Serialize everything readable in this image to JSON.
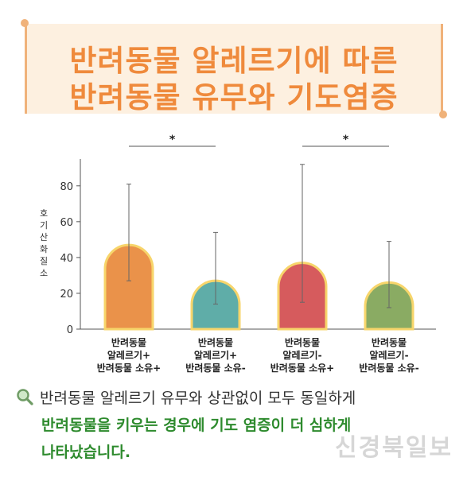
{
  "title": {
    "line1": "반려동물 알레르기에 따른",
    "line2": "반려동물 유무와 기도염증"
  },
  "colors": {
    "title": "#ef8a3c",
    "highlight": "#2e8b2e",
    "bar_outline": "#f7d56b"
  },
  "chart_data": {
    "type": "bar",
    "ylabel": "호기산화질소",
    "ylim": [
      0,
      95
    ],
    "yticks": [
      0,
      20,
      40,
      60,
      80
    ],
    "categories": [
      [
        "반려동물",
        "알레르기+",
        "반려동물 소유+"
      ],
      [
        "반려동물",
        "알레르기+",
        "반려동물 소유-"
      ],
      [
        "반려동물",
        "알레르기-",
        "반려동물 소유+"
      ],
      [
        "반려동물",
        "알레르기-",
        "반려동물 소유-"
      ]
    ],
    "values": [
      47,
      27,
      37,
      26
    ],
    "error_low": [
      27,
      14,
      15,
      12
    ],
    "error_high": [
      81,
      54,
      92,
      49
    ],
    "bar_colors": [
      "#ea924a",
      "#5fada8",
      "#d65b5d",
      "#8aab63"
    ],
    "significance": [
      {
        "from": 0,
        "to": 1,
        "label": "*"
      },
      {
        "from": 2,
        "to": 3,
        "label": "*"
      }
    ]
  },
  "footer": {
    "icon": "magnifier-icon",
    "line1": "반려동물 알레르기 유무와 상관없이 모두 동일하게",
    "line2": "반려동물을 키우는 경우에 기도 염증이 더 심하게",
    "line3": "나타났습니다."
  },
  "watermark": "신경북일보"
}
